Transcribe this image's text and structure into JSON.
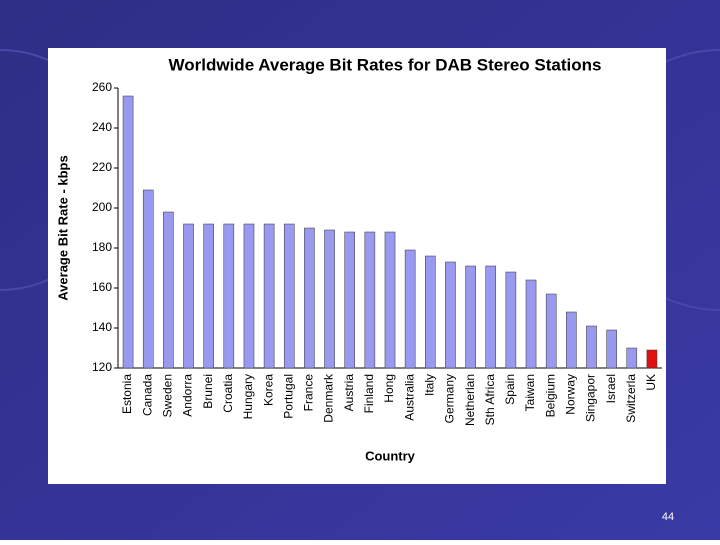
{
  "chart_data": {
    "type": "bar",
    "title": "Worldwide Average Bit Rates for DAB Stereo Stations",
    "x_label": "Country",
    "y_label": "Average Bit Rate - kbps",
    "categories": [
      "Estonia",
      "Canada",
      "Sweden",
      "Andorra",
      "Brunei",
      "Croatia",
      "Hungary",
      "Korea",
      "Portugal",
      "France",
      "Denmark",
      "Austria",
      "Finland",
      "Hong",
      "Australia",
      "Italy",
      "Germany",
      "Netherlan",
      "Sth Africa",
      "Spain",
      "Taiwan",
      "Belgium",
      "Norway",
      "Singapor",
      "Israel",
      "Switzerla",
      "UK"
    ],
    "values": [
      256,
      209,
      198,
      192,
      192,
      192,
      192,
      192,
      192,
      190,
      189,
      188,
      188,
      188,
      179,
      176,
      173,
      171,
      171,
      168,
      164,
      157,
      148,
      141,
      139,
      130,
      129
    ],
    "colors": [
      "#9999f0",
      "#9999f0",
      "#9999f0",
      "#9999f0",
      "#9999f0",
      "#9999f0",
      "#9999f0",
      "#9999f0",
      "#9999f0",
      "#9999f0",
      "#9999f0",
      "#9999f0",
      "#9999f0",
      "#9999f0",
      "#9999f0",
      "#9999f0",
      "#9999f0",
      "#9999f0",
      "#9999f0",
      "#9999f0",
      "#9999f0",
      "#9999f0",
      "#9999f0",
      "#9999f0",
      "#9999f0",
      "#9999f0",
      "#e01010"
    ],
    "ylim": [
      120,
      260
    ],
    "yticks": [
      120,
      140,
      160,
      180,
      200,
      220,
      240,
      260
    ],
    "grid": false
  },
  "slide_number": "44"
}
